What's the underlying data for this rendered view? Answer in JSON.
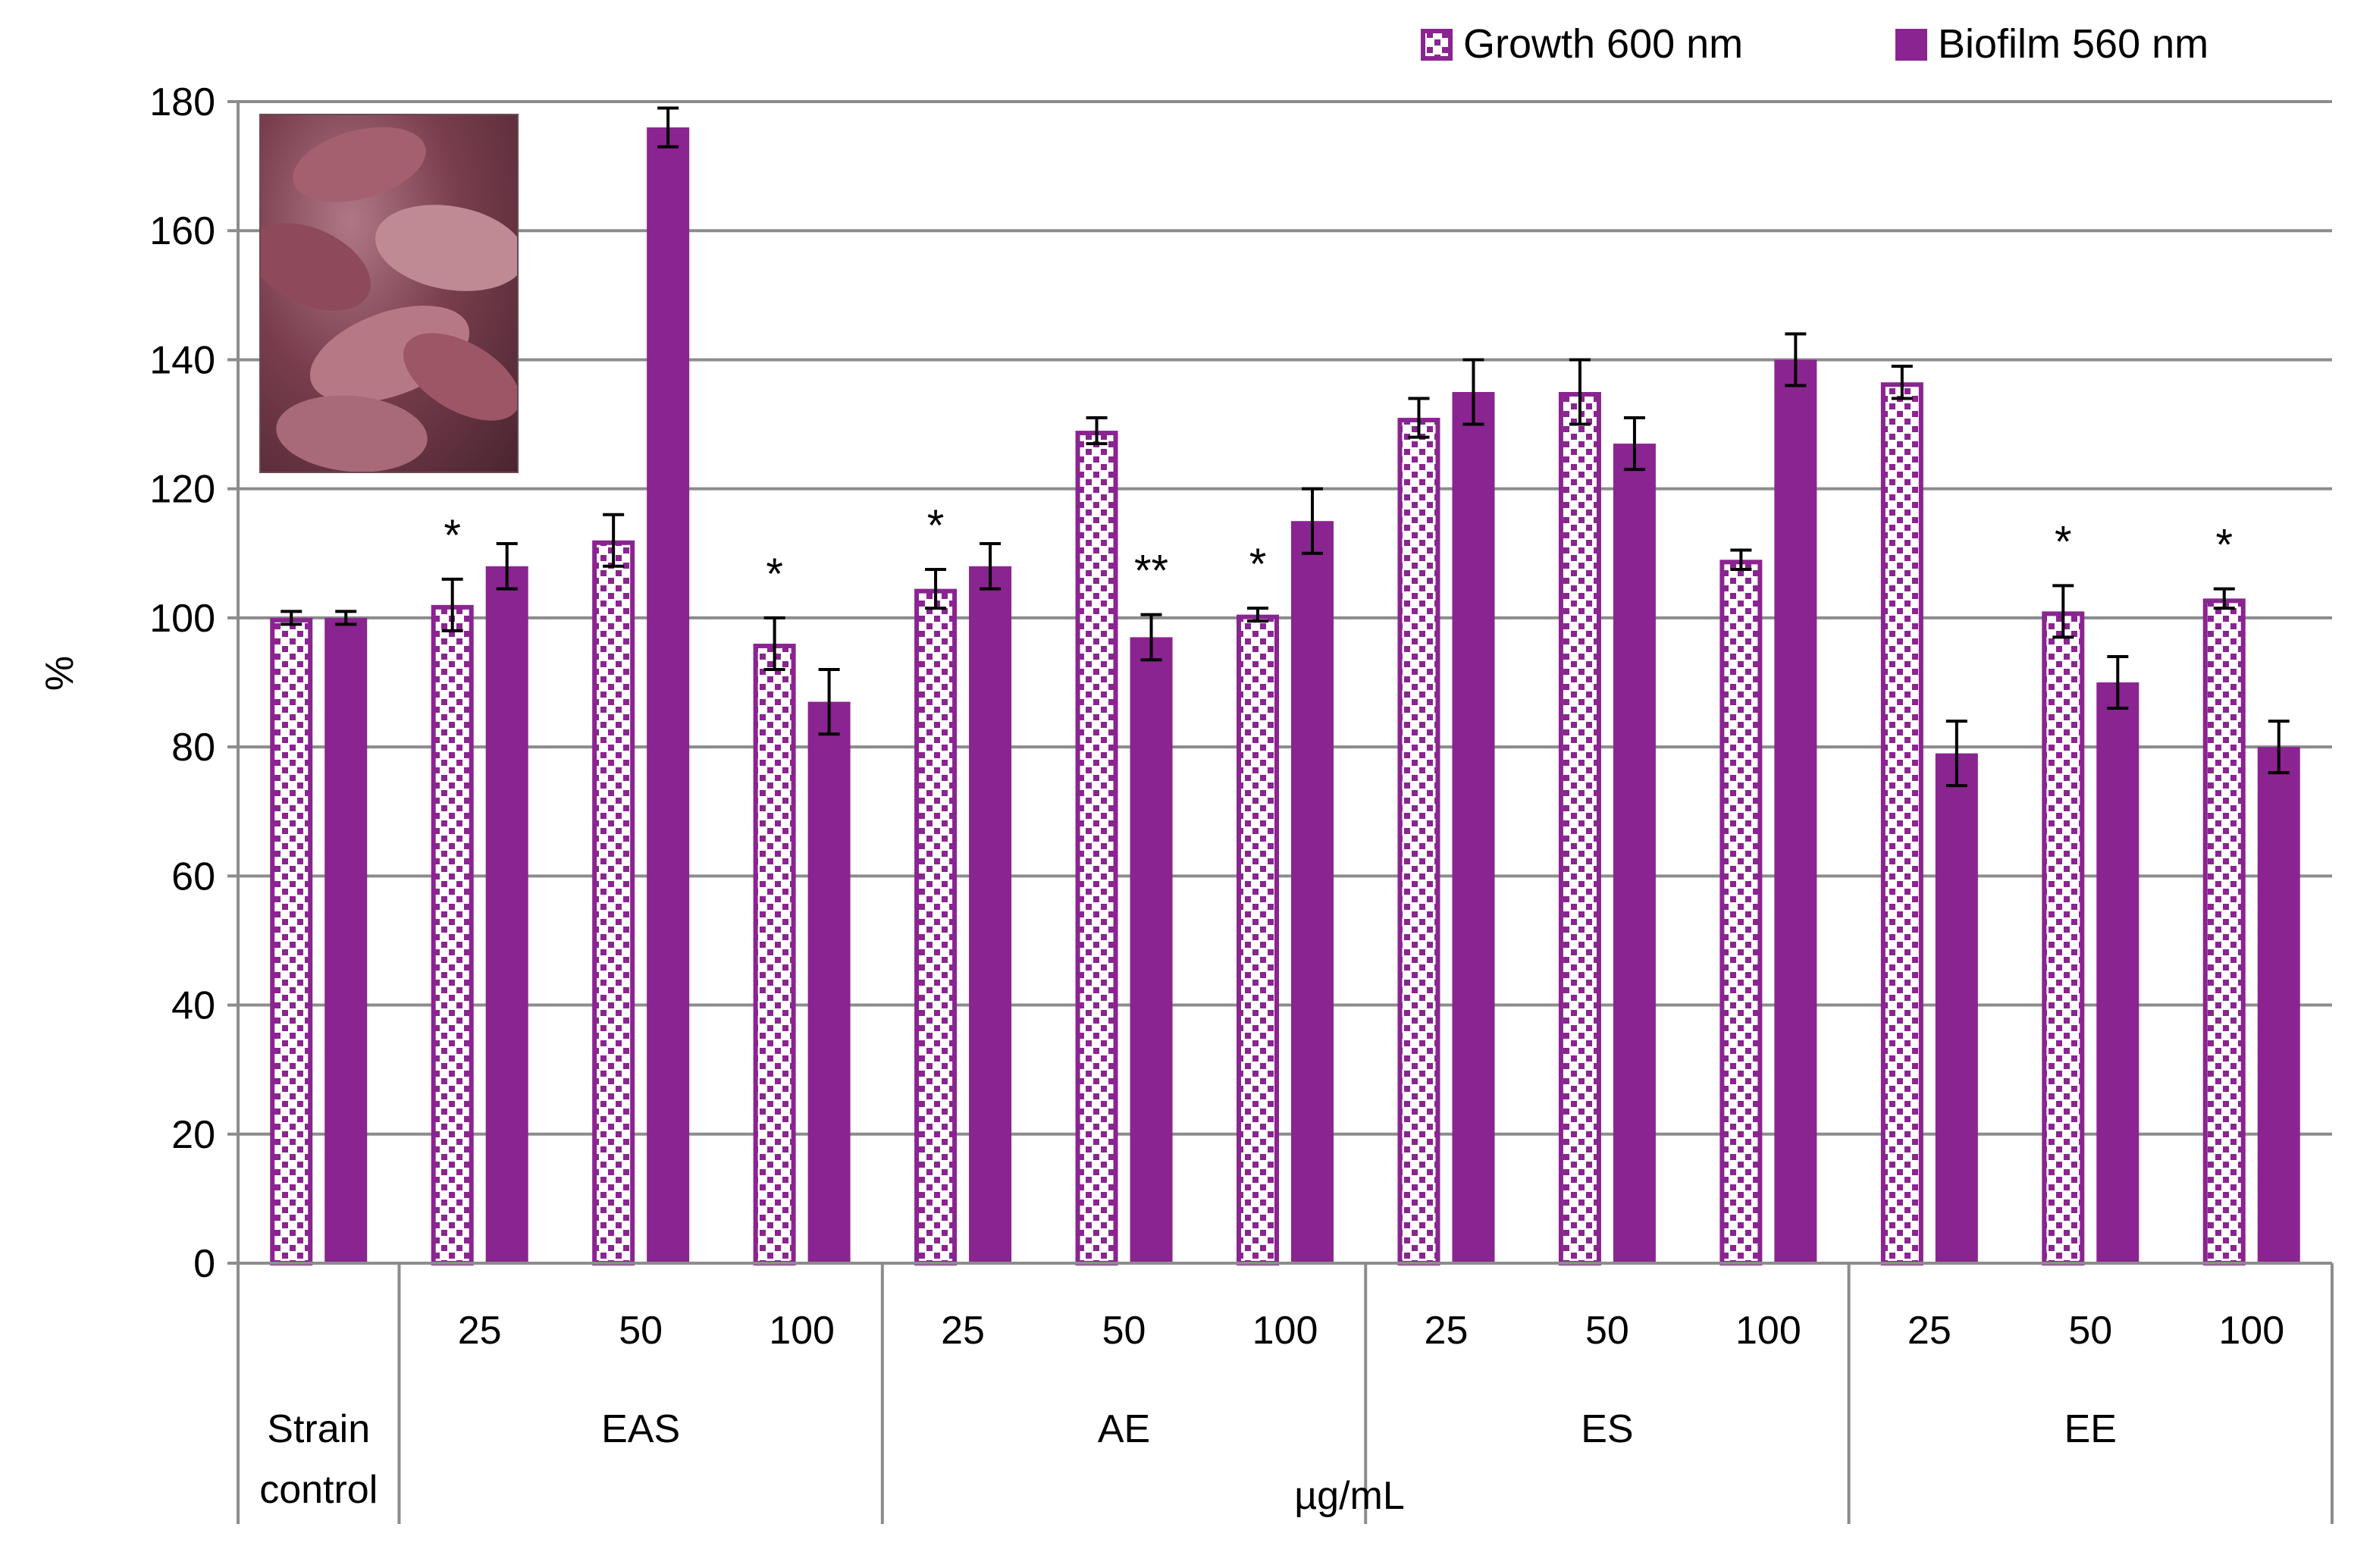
{
  "chart_data": {
    "type": "bar",
    "ylabel": "%",
    "xlabel": "µg/mL",
    "ylim": [
      0,
      180
    ],
    "yticks": [
      0,
      20,
      40,
      60,
      80,
      100,
      120,
      140,
      160,
      180
    ],
    "grid": true,
    "legend_position": "top-right",
    "series": [
      {
        "name": "Growth 600 nm",
        "color": "#8a2490",
        "pattern": "dotted",
        "values": [
          100,
          102,
          112,
          96,
          104.5,
          129,
          100.5,
          131,
          135,
          109,
          136.5,
          101,
          103
        ],
        "errors": [
          1,
          4,
          4,
          4,
          3,
          2,
          1,
          3,
          5,
          1.5,
          2.5,
          4,
          1.5
        ]
      },
      {
        "name": "Biofilm 560 nm",
        "color": "#8a2490",
        "pattern": "solid",
        "values": [
          100,
          108,
          176,
          87,
          108,
          97,
          115,
          135,
          127,
          140,
          79,
          90,
          80
        ],
        "errors": [
          1,
          3.5,
          3,
          5,
          3.5,
          3.5,
          5,
          5,
          4,
          4,
          5,
          4,
          4
        ]
      }
    ],
    "categories": [
      {
        "group": "Strain control",
        "label": ""
      },
      {
        "group": "EAS",
        "label": "25"
      },
      {
        "group": "EAS",
        "label": "50"
      },
      {
        "group": "EAS",
        "label": "100"
      },
      {
        "group": "AE",
        "label": "25"
      },
      {
        "group": "AE",
        "label": "50"
      },
      {
        "group": "AE",
        "label": "100"
      },
      {
        "group": "ES",
        "label": "25"
      },
      {
        "group": "ES",
        "label": "50"
      },
      {
        "group": "ES",
        "label": "100"
      },
      {
        "group": "EE",
        "label": "25"
      },
      {
        "group": "EE",
        "label": "50"
      },
      {
        "group": "EE",
        "label": "100"
      }
    ],
    "groups": [
      {
        "label_lines": [
          "Strain",
          "control"
        ],
        "span": 1
      },
      {
        "label_lines": [
          "EAS"
        ],
        "span": 3
      },
      {
        "label_lines": [
          "AE"
        ],
        "span": 3
      },
      {
        "label_lines": [
          "ES"
        ],
        "span": 3
      },
      {
        "label_lines": [
          "EE"
        ],
        "span": 3
      }
    ],
    "annotations": [
      {
        "category": 1,
        "series": 0,
        "text": "*"
      },
      {
        "category": 3,
        "series": 0,
        "text": "*"
      },
      {
        "category": 4,
        "series": 0,
        "text": "*"
      },
      {
        "category": 5,
        "series": 1,
        "text": "**"
      },
      {
        "category": 6,
        "series": 0,
        "text": "*"
      },
      {
        "category": 11,
        "series": 0,
        "text": "*"
      },
      {
        "category": 12,
        "series": 0,
        "text": "*"
      }
    ]
  },
  "inset_image": "tuber-photo"
}
